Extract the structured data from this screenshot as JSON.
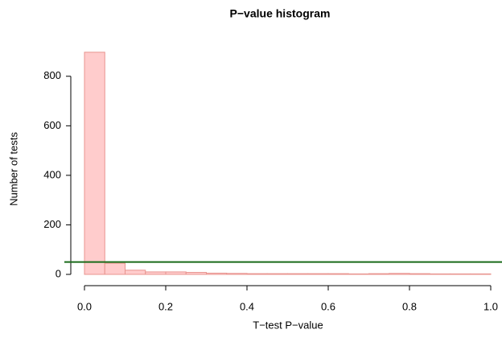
{
  "chart_data": {
    "type": "histogram",
    "title": "P−value histogram",
    "x_label": "T−test P−value",
    "y_label": "Number of tests",
    "bins": [
      0,
      0.05,
      0.1,
      0.15,
      0.2,
      0.25,
      0.3,
      0.35,
      0.4,
      0.45,
      0.5,
      0.55,
      0.6,
      0.65,
      0.7,
      0.75,
      0.8,
      0.85,
      0.9,
      0.95,
      1.0
    ],
    "values": [
      897,
      45,
      17,
      10,
      10,
      8,
      5,
      4,
      3,
      3,
      3,
      3,
      3,
      2,
      3,
      4,
      3,
      2,
      2,
      2
    ],
    "color": "#ffcccc",
    "edge_color": "#e8948f",
    "xlim": [
      0,
      1
    ],
    "ylim": [
      0,
      900
    ],
    "xticks": [
      {
        "value": 0,
        "label": "0.0"
      },
      0.2,
      0.4,
      0.6,
      0.8,
      {
        "value": 1,
        "label": "1.0"
      }
    ],
    "yticks": [
      0,
      200,
      400,
      600,
      800
    ],
    "reference_line": {
      "value": 50,
      "color": "#1a6b1a"
    }
  }
}
